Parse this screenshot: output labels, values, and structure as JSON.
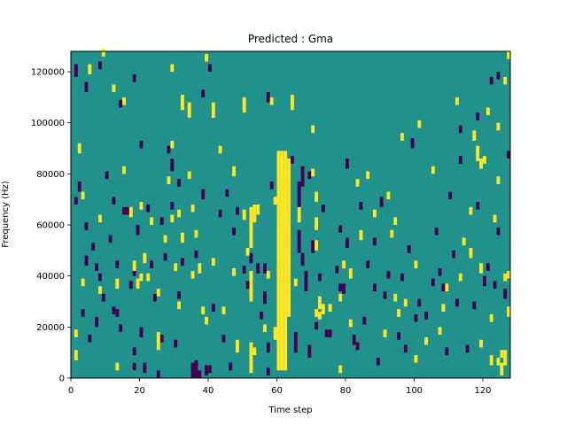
{
  "chart_data": {
    "type": "heatmap",
    "title": "Predicted : Gma",
    "xlabel": "Time step",
    "ylabel": "Frequency (Hz)",
    "xlim": [
      0,
      128
    ],
    "ylim": [
      0,
      128000
    ],
    "x_ticks": [
      0,
      20,
      40,
      60,
      80,
      100,
      120
    ],
    "y_ticks": [
      0,
      20000,
      40000,
      60000,
      80000,
      100000,
      120000
    ],
    "x_tick_labels": [
      "0",
      "20",
      "40",
      "60",
      "80",
      "100",
      "120"
    ],
    "y_tick_labels": [
      "0",
      "20000",
      "40000",
      "60000",
      "80000",
      "100000",
      "120000"
    ],
    "grid": false,
    "colorbar": false,
    "colormap": "viridis",
    "value_levels": [
      -1,
      0,
      1
    ],
    "background_value": 0,
    "colors": {
      "low": "#440154",
      "mid": "#21918c",
      "high": "#fde725"
    },
    "cell_height_hz": 1000,
    "cells": {
      "high": [
        [
          1,
          7,
          4
        ],
        [
          1,
          16,
          3
        ],
        [
          2,
          88,
          4
        ],
        [
          3,
          36,
          3
        ],
        [
          3,
          70,
          3
        ],
        [
          5,
          119,
          4
        ],
        [
          8,
          61,
          3
        ],
        [
          8,
          33,
          3
        ],
        [
          9,
          126,
          3
        ],
        [
          12,
          112,
          3
        ],
        [
          13,
          35,
          4
        ],
        [
          13,
          3,
          3
        ],
        [
          15,
          107,
          3
        ],
        [
          15,
          80,
          3
        ],
        [
          17,
          63,
          4
        ],
        [
          18,
          42,
          4
        ],
        [
          19,
          35,
          4
        ],
        [
          20,
          66,
          3
        ],
        [
          20,
          38,
          3
        ],
        [
          21,
          45,
          4
        ],
        [
          22,
          38,
          3
        ],
        [
          23,
          60,
          3
        ],
        [
          25,
          32,
          3
        ],
        [
          25,
          11,
          7
        ],
        [
          27,
          53,
          3
        ],
        [
          29,
          120,
          3
        ],
        [
          29,
          90,
          3
        ],
        [
          28,
          76,
          3
        ],
        [
          29,
          61,
          3
        ],
        [
          30,
          42,
          3
        ],
        [
          31,
          63,
          3
        ],
        [
          31,
          27,
          3
        ],
        [
          32,
          105,
          6
        ],
        [
          32,
          53,
          4
        ],
        [
          34,
          102,
          6
        ],
        [
          34,
          78,
          3
        ],
        [
          35,
          65,
          3
        ],
        [
          35,
          39,
          3
        ],
        [
          36,
          55,
          3
        ],
        [
          37,
          41,
          4
        ],
        [
          38,
          25,
          3
        ],
        [
          39,
          124,
          3
        ],
        [
          39,
          21,
          3
        ],
        [
          41,
          102,
          6
        ],
        [
          41,
          44,
          3
        ],
        [
          43,
          88,
          3
        ],
        [
          44,
          25,
          3
        ],
        [
          47,
          79,
          4
        ],
        [
          47,
          40,
          3
        ],
        [
          48,
          10,
          5
        ],
        [
          50,
          104,
          6
        ],
        [
          50,
          62,
          4
        ],
        [
          51,
          48,
          3
        ],
        [
          52,
          3,
          4
        ],
        [
          52,
          2,
          12
        ],
        [
          52,
          30,
          12
        ],
        [
          52,
          51,
          16
        ],
        [
          53,
          61,
          7
        ],
        [
          53,
          9,
          3
        ],
        [
          54,
          64,
          4
        ],
        [
          56,
          18,
          3
        ],
        [
          57,
          39,
          3
        ],
        [
          58,
          107,
          3
        ],
        [
          59,
          68,
          3
        ],
        [
          59,
          15,
          5
        ],
        [
          60,
          3,
          86
        ],
        [
          61,
          3,
          86
        ],
        [
          61,
          59,
          12
        ],
        [
          62,
          3,
          86
        ],
        [
          63,
          24,
          62
        ],
        [
          64,
          105,
          6
        ],
        [
          65,
          36,
          3
        ],
        [
          66,
          61,
          6
        ],
        [
          70,
          79,
          3
        ],
        [
          70,
          96,
          3
        ],
        [
          71,
          24,
          3
        ],
        [
          71,
          58,
          5
        ],
        [
          71,
          50,
          4
        ],
        [
          71,
          69,
          4
        ],
        [
          72,
          23,
          3
        ],
        [
          72,
          27,
          5
        ],
        [
          73,
          25,
          4
        ],
        [
          75,
          26,
          3
        ],
        [
          78,
          30,
          3
        ],
        [
          78,
          2,
          3
        ],
        [
          79,
          43,
          3
        ],
        [
          81,
          39,
          4
        ],
        [
          81,
          20,
          3
        ],
        [
          83,
          75,
          3
        ],
        [
          84,
          54,
          4
        ],
        [
          86,
          78,
          3
        ],
        [
          88,
          63,
          3
        ],
        [
          91,
          16,
          3
        ],
        [
          92,
          70,
          3
        ],
        [
          93,
          55,
          3
        ],
        [
          94,
          60,
          3
        ],
        [
          94,
          30,
          3
        ],
        [
          95,
          24,
          3
        ],
        [
          96,
          93,
          3
        ],
        [
          97,
          28,
          3
        ],
        [
          100,
          43,
          3
        ],
        [
          100,
          6,
          3
        ],
        [
          101,
          98,
          3
        ],
        [
          103,
          13,
          3
        ],
        [
          105,
          80,
          3
        ],
        [
          107,
          17,
          3
        ],
        [
          108,
          26,
          3
        ],
        [
          109,
          34,
          3
        ],
        [
          112,
          107,
          3
        ],
        [
          113,
          38,
          3
        ],
        [
          114,
          52,
          3
        ],
        [
          116,
          64,
          3
        ],
        [
          117,
          93,
          4
        ],
        [
          118,
          85,
          6
        ],
        [
          119,
          82,
          4
        ],
        [
          120,
          84,
          3
        ],
        [
          121,
          103,
          3
        ],
        [
          122,
          22,
          3
        ],
        [
          123,
          61,
          3
        ],
        [
          124,
          97,
          3
        ],
        [
          124,
          5,
          3
        ],
        [
          124,
          76,
          3
        ],
        [
          125,
          8,
          3
        ],
        [
          126,
          5,
          6
        ],
        [
          126,
          115,
          3
        ],
        [
          127,
          39,
          3
        ],
        [
          127,
          125,
          3
        ],
        [
          116,
          47,
          4
        ],
        [
          119,
          12,
          3
        ],
        [
          119,
          41,
          4
        ],
        [
          122,
          5,
          4
        ],
        [
          125,
          1,
          5
        ],
        [
          126,
          38,
          3
        ],
        [
          127,
          24,
          4
        ]
      ],
      "low": [
        [
          1,
          118,
          5
        ],
        [
          1,
          68,
          3
        ],
        [
          2,
          73,
          4
        ],
        [
          3,
          24,
          3
        ],
        [
          4,
          112,
          4
        ],
        [
          4,
          44,
          4
        ],
        [
          4,
          58,
          3
        ],
        [
          5,
          14,
          3
        ],
        [
          6,
          50,
          3
        ],
        [
          7,
          20,
          4
        ],
        [
          7,
          42,
          3
        ],
        [
          8,
          121,
          3
        ],
        [
          8,
          38,
          3
        ],
        [
          9,
          30,
          3
        ],
        [
          10,
          78,
          3
        ],
        [
          11,
          53,
          3
        ],
        [
          12,
          68,
          3
        ],
        [
          12,
          25,
          3
        ],
        [
          13,
          43,
          3
        ],
        [
          13,
          24,
          3
        ],
        [
          14,
          18,
          3
        ],
        [
          14,
          106,
          3
        ],
        [
          15,
          64,
          3
        ],
        [
          16,
          64,
          3
        ],
        [
          17,
          35,
          3
        ],
        [
          18,
          9,
          3
        ],
        [
          18,
          40,
          4
        ],
        [
          18,
          116,
          3
        ],
        [
          18,
          3,
          3
        ],
        [
          19,
          56,
          3
        ],
        [
          19,
          57,
          3
        ],
        [
          20,
          16,
          4
        ],
        [
          20,
          90,
          3
        ],
        [
          21,
          2,
          4
        ],
        [
          22,
          65,
          3
        ],
        [
          23,
          43,
          3
        ],
        [
          24,
          30,
          3
        ],
        [
          25,
          0,
          3
        ],
        [
          26,
          60,
          3
        ],
        [
          26,
          14,
          3
        ],
        [
          27,
          46,
          3
        ],
        [
          28,
          88,
          3
        ],
        [
          29,
          66,
          3
        ],
        [
          29,
          83,
          3
        ],
        [
          29,
          81,
          3
        ],
        [
          30,
          12,
          3
        ],
        [
          31,
          75,
          3
        ],
        [
          31,
          31,
          3
        ],
        [
          32,
          44,
          3
        ],
        [
          35,
          0,
          6
        ],
        [
          36,
          0,
          6
        ],
        [
          36,
          47,
          3
        ],
        [
          37,
          0,
          3
        ],
        [
          38,
          70,
          4
        ],
        [
          38,
          110,
          3
        ],
        [
          39,
          2,
          3
        ],
        [
          40,
          2,
          3
        ],
        [
          40,
          120,
          3
        ],
        [
          41,
          26,
          3
        ],
        [
          43,
          63,
          3
        ],
        [
          44,
          14,
          3
        ],
        [
          45,
          71,
          3
        ],
        [
          46,
          3,
          3
        ],
        [
          47,
          56,
          3
        ],
        [
          48,
          64,
          3
        ],
        [
          50,
          41,
          3
        ],
        [
          51,
          35,
          3
        ],
        [
          52,
          45,
          4
        ],
        [
          53,
          64,
          3
        ],
        [
          55,
          23,
          3
        ],
        [
          56,
          29,
          5
        ],
        [
          56,
          41,
          4
        ],
        [
          57,
          108,
          4
        ],
        [
          57,
          10,
          4
        ],
        [
          58,
          74,
          3
        ],
        [
          60,
          39,
          4
        ],
        [
          64,
          84,
          3
        ],
        [
          65,
          10,
          8
        ],
        [
          66,
          63,
          14
        ],
        [
          66,
          49,
          9
        ],
        [
          67,
          75,
          8
        ],
        [
          67,
          44,
          5
        ],
        [
          68,
          34,
          8
        ],
        [
          69,
          8,
          5
        ],
        [
          69,
          78,
          3
        ],
        [
          70,
          49,
          5
        ],
        [
          71,
          19,
          3
        ],
        [
          72,
          38,
          3
        ],
        [
          73,
          65,
          3
        ],
        [
          74,
          16,
          3
        ],
        [
          75,
          16,
          3
        ],
        [
          77,
          41,
          3
        ],
        [
          78,
          34,
          3
        ],
        [
          78,
          57,
          3
        ],
        [
          79,
          33,
          4
        ],
        [
          80,
          82,
          4
        ],
        [
          80,
          51,
          4
        ],
        [
          81,
          40,
          3
        ],
        [
          82,
          13,
          4
        ],
        [
          83,
          11,
          3
        ],
        [
          84,
          66,
          3
        ],
        [
          85,
          21,
          3
        ],
        [
          86,
          43,
          3
        ],
        [
          88,
          34,
          3
        ],
        [
          88,
          52,
          3
        ],
        [
          89,
          5,
          3
        ],
        [
          90,
          67,
          4
        ],
        [
          91,
          31,
          3
        ],
        [
          92,
          39,
          3
        ],
        [
          95,
          15,
          3
        ],
        [
          96,
          38,
          3
        ],
        [
          97,
          10,
          3
        ],
        [
          98,
          49,
          3
        ],
        [
          99,
          90,
          4
        ],
        [
          100,
          22,
          3
        ],
        [
          101,
          28,
          3
        ],
        [
          103,
          23,
          3
        ],
        [
          105,
          36,
          3
        ],
        [
          106,
          56,
          3
        ],
        [
          107,
          40,
          3
        ],
        [
          108,
          34,
          3
        ],
        [
          109,
          9,
          3
        ],
        [
          110,
          70,
          3
        ],
        [
          111,
          47,
          3
        ],
        [
          112,
          28,
          3
        ],
        [
          113,
          84,
          3
        ],
        [
          113,
          96,
          3
        ],
        [
          115,
          10,
          3
        ],
        [
          117,
          27,
          3
        ],
        [
          118,
          101,
          3
        ],
        [
          118,
          66,
          3
        ],
        [
          120,
          36,
          4
        ],
        [
          121,
          42,
          3
        ],
        [
          122,
          115,
          3
        ],
        [
          123,
          35,
          3
        ],
        [
          124,
          56,
          3
        ],
        [
          124,
          117,
          3
        ],
        [
          126,
          31,
          4
        ],
        [
          127,
          86,
          3
        ],
        [
          36,
          1,
          6
        ],
        [
          39,
          1,
          4
        ],
        [
          54,
          41,
          4
        ],
        [
          57,
          1,
          3
        ]
      ]
    }
  }
}
